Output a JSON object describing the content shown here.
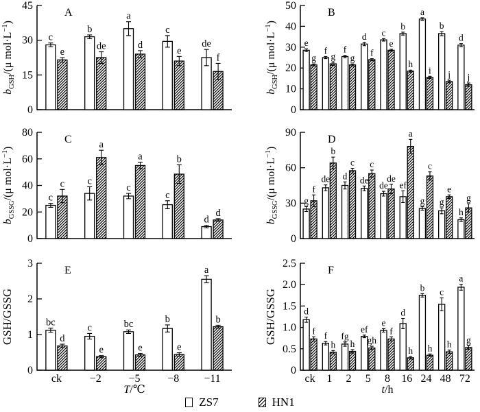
{
  "figure": {
    "background": "#ffffff",
    "ink": "#000000"
  },
  "legend": {
    "items": [
      {
        "label": "ZS7",
        "style": "open"
      },
      {
        "label": "HN1",
        "style": "hatch"
      }
    ]
  },
  "chart_data": [
    {
      "type": "bar",
      "panel": "A",
      "ylabel": {
        "it": "b",
        "sub": "GSH",
        "pre": "/(μ mol·L",
        "sup": "−1",
        "post": ")"
      },
      "ylim": [
        0,
        45
      ],
      "yticks": [
        0,
        15,
        30,
        45
      ],
      "ytick_labels": [
        "0",
        "15",
        "30",
        "45"
      ],
      "categories": [
        "ck",
        "−2",
        "−5",
        "−8",
        "−11"
      ],
      "show_x_labels": false,
      "xlabel": null,
      "grid": false,
      "series": [
        {
          "name": "ZS7",
          "values": [
            28,
            31.5,
            35,
            29.5,
            22.5
          ],
          "errors": [
            0.8,
            0.8,
            3,
            2.5,
            3.5
          ],
          "letters": [
            "c",
            "b",
            "a",
            "c",
            "de"
          ]
        },
        {
          "name": "HN1",
          "values": [
            21.5,
            22.5,
            24,
            21,
            16.5
          ],
          "errors": [
            1,
            2.5,
            1.5,
            2,
            3.5
          ],
          "letters": [
            "e",
            "de",
            "d",
            "e",
            "f"
          ]
        }
      ]
    },
    {
      "type": "bar",
      "panel": "B",
      "ylabel": {
        "it": "b",
        "sub": "GSH",
        "pre": "/(μ mol·L",
        "sup": "−1",
        "post": ")"
      },
      "ylim": [
        0,
        50
      ],
      "yticks": [
        0,
        10,
        20,
        30,
        40,
        50
      ],
      "ytick_labels": [
        "0",
        "10",
        "20",
        "30",
        "40",
        "50"
      ],
      "categories": [
        "ck",
        "1",
        "2",
        "5",
        "8",
        "16",
        "24",
        "48",
        "72"
      ],
      "show_x_labels": false,
      "xlabel": null,
      "grid": false,
      "series": [
        {
          "name": "ZS7",
          "values": [
            28.5,
            25,
            25.5,
            31.5,
            33.5,
            36.5,
            43.5,
            36.5,
            31
          ],
          "errors": [
            0.7,
            0.5,
            0.6,
            0.8,
            0.6,
            0.7,
            0.6,
            1,
            0.7
          ],
          "letters": [
            "e",
            "f",
            "f",
            "d",
            "c",
            "b",
            "a",
            "b",
            "d"
          ]
        },
        {
          "name": "HN1",
          "values": [
            21.5,
            22,
            21.5,
            24,
            28.5,
            18.5,
            15.5,
            13.5,
            12
          ],
          "errors": [
            0.5,
            0.8,
            0.5,
            0.5,
            0.5,
            0.5,
            0.5,
            0.6,
            0.8
          ],
          "letters": [
            "g",
            "g",
            "g",
            "f",
            "e",
            "h",
            "i",
            "j",
            "j"
          ]
        }
      ]
    },
    {
      "type": "bar",
      "panel": "C",
      "ylabel": {
        "it": "b",
        "sub": "GSSG",
        "pre": "/(μ mol·L",
        "sup": "−1",
        "post": ")"
      },
      "ylim": [
        0,
        80
      ],
      "yticks": [
        0,
        20,
        40,
        60,
        80
      ],
      "ytick_labels": [
        "0",
        "20",
        "40",
        "60",
        "80"
      ],
      "categories": [
        "ck",
        "−2",
        "−5",
        "−8",
        "−11"
      ],
      "show_x_labels": false,
      "xlabel": null,
      "grid": false,
      "series": [
        {
          "name": "ZS7",
          "values": [
            25,
            34,
            32,
            25.5,
            9
          ],
          "errors": [
            1.5,
            5,
            2,
            3,
            1
          ],
          "letters": [
            "c",
            "c",
            "c",
            "c",
            "d"
          ]
        },
        {
          "name": "HN1",
          "values": [
            32,
            61,
            55,
            48.5,
            14
          ],
          "errors": [
            5,
            5.5,
            2.5,
            7,
            1
          ],
          "letters": [
            "c",
            "a",
            "a",
            "b",
            "d"
          ]
        }
      ]
    },
    {
      "type": "bar",
      "panel": "D",
      "ylabel": {
        "it": "b",
        "sub": "GSSG",
        "pre": "/(μ mol·L",
        "sup": "−1",
        "post": ")"
      },
      "ylim": [
        0,
        90
      ],
      "yticks": [
        0,
        30,
        60,
        90
      ],
      "ytick_labels": [
        "0",
        "30",
        "60",
        "90"
      ],
      "categories": [
        "ck",
        "1",
        "2",
        "5",
        "8",
        "16",
        "24",
        "48",
        "72"
      ],
      "show_x_labels": false,
      "xlabel": null,
      "grid": false,
      "series": [
        {
          "name": "ZS7",
          "values": [
            25,
            43,
            45,
            42.5,
            38,
            35.5,
            25.5,
            23.5,
            16
          ],
          "errors": [
            2,
            2.5,
            3,
            2,
            2,
            5,
            1.5,
            2.5,
            1.5
          ],
          "letters": [
            "g",
            "de",
            "d",
            "de",
            "de",
            "ef",
            "g",
            "g",
            "h"
          ]
        },
        {
          "name": "HN1",
          "values": [
            32,
            64,
            57.5,
            55,
            42,
            78,
            53,
            35.5,
            26
          ],
          "errors": [
            5,
            5,
            2,
            3,
            4,
            6,
            3.5,
            1.5,
            3.5
          ],
          "letters": [
            "f",
            "b",
            "c",
            "c",
            "de",
            "a",
            "c",
            "e",
            "g"
          ]
        }
      ]
    },
    {
      "type": "bar",
      "panel": "E",
      "ylabel": {
        "plain": "GSH/GSSG"
      },
      "ylim": [
        0,
        3
      ],
      "yticks": [
        0,
        1,
        2,
        3
      ],
      "ytick_labels": [
        "0",
        "1",
        "2",
        "3"
      ],
      "categories": [
        "ck",
        "−2",
        "−5",
        "−8",
        "−11"
      ],
      "show_x_labels": true,
      "xlabel": {
        "it": "T",
        "rest": "/℃"
      },
      "grid": false,
      "series": [
        {
          "name": "ZS7",
          "values": [
            1.12,
            0.95,
            1.08,
            1.17,
            2.55
          ],
          "errors": [
            0.06,
            0.08,
            0.05,
            0.1,
            0.1
          ],
          "letters": [
            "bc",
            "c",
            "bc",
            "b",
            "a"
          ]
        },
        {
          "name": "HN1",
          "values": [
            0.68,
            0.38,
            0.43,
            0.44,
            1.22
          ],
          "errors": [
            0.05,
            0.03,
            0.04,
            0.05,
            0.04
          ],
          "letters": [
            "d",
            "e",
            "e",
            "e",
            "b"
          ]
        }
      ]
    },
    {
      "type": "bar",
      "panel": "F",
      "ylabel": {
        "plain": "GSH/GSSG"
      },
      "ylim": [
        0,
        2.5
      ],
      "yticks": [
        0,
        0.5,
        1.0,
        1.5,
        2.0,
        2.5
      ],
      "ytick_labels": [
        "0",
        "0.5",
        "1.0",
        "1.5",
        "2.0",
        "2.5"
      ],
      "categories": [
        "ck",
        "1",
        "2",
        "5",
        "8",
        "16",
        "24",
        "48",
        "72"
      ],
      "show_x_labels": true,
      "xlabel": {
        "it": "t",
        "rest": "/h"
      },
      "grid": false,
      "series": [
        {
          "name": "ZS7",
          "values": [
            1.18,
            0.63,
            0.61,
            0.79,
            0.93,
            1.09,
            1.75,
            1.54,
            1.94
          ],
          "errors": [
            0.06,
            0.04,
            0.05,
            0.03,
            0.04,
            0.12,
            0.04,
            0.15,
            0.07
          ],
          "letters": [
            "d",
            "f",
            "fg",
            "ef",
            "e",
            "d",
            "b",
            "c",
            "a"
          ]
        },
        {
          "name": "HN1",
          "values": [
            0.73,
            0.42,
            0.44,
            0.52,
            0.73,
            0.29,
            0.35,
            0.43,
            0.53
          ],
          "errors": [
            0.05,
            0.04,
            0.04,
            0.04,
            0.05,
            0.03,
            0.03,
            0.04,
            0.04
          ],
          "letters": [
            "f",
            "h",
            "h",
            "gh",
            "f",
            "h",
            "h",
            "h",
            "g"
          ]
        }
      ]
    }
  ]
}
